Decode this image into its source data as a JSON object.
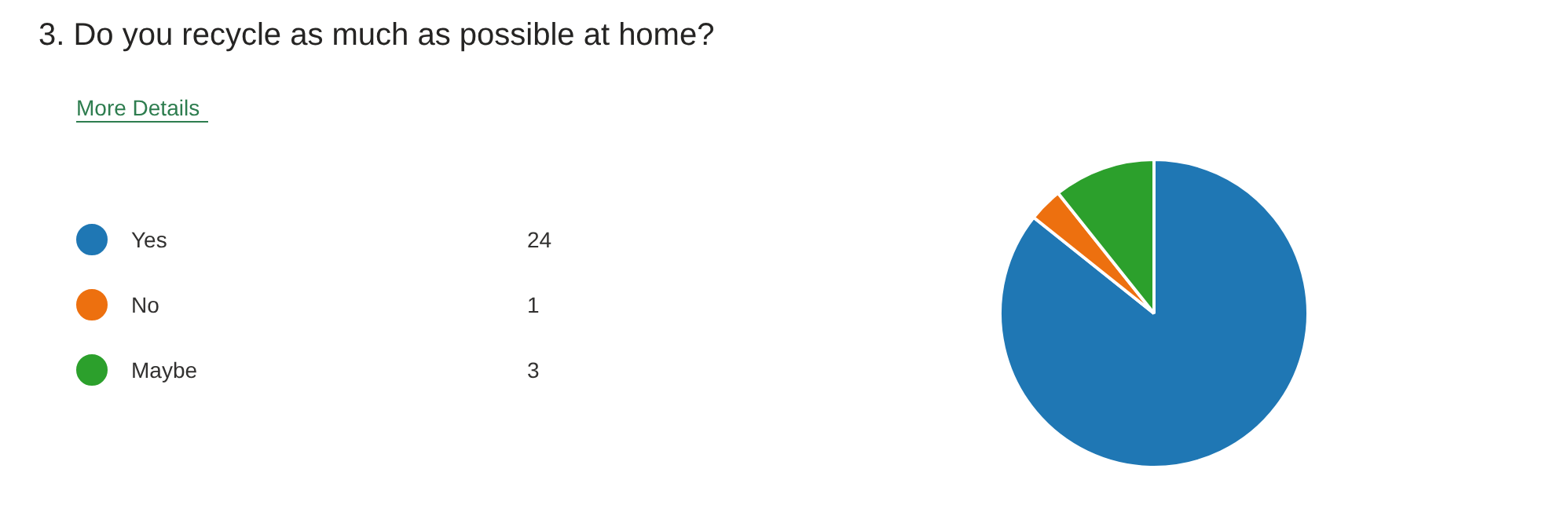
{
  "chart_data": {
    "type": "pie",
    "title": "3.  Do you recycle as much as possible at home?",
    "annotations": [
      "More Details"
    ],
    "categories": [
      "Yes",
      "No",
      "Maybe"
    ],
    "values": [
      24,
      1,
      3
    ],
    "colors": [
      "#1f77b4",
      "#ed700f",
      "#2ca02c"
    ],
    "legend": "left",
    "data_labels": true
  }
}
